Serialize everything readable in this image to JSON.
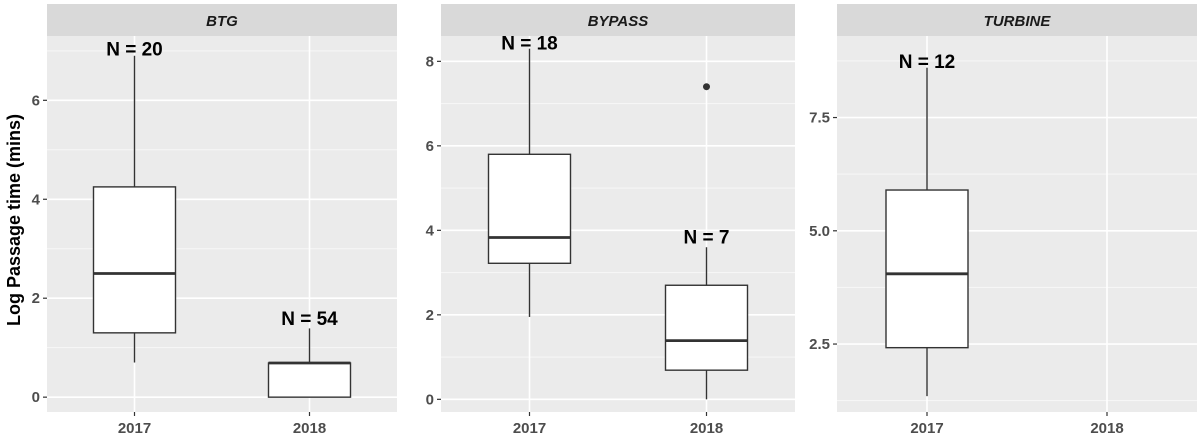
{
  "chart_data": {
    "type": "boxplot",
    "ylabel": "Log Passage time (mins)",
    "xlabel": "",
    "categories": [
      "2017",
      "2018"
    ],
    "facets": [
      {
        "name": "BTG",
        "ylim": [
          -0.3,
          7.3
        ],
        "yticks": [
          0,
          2,
          4,
          6
        ],
        "yticklabels": [
          "0",
          "2",
          "4",
          "6"
        ],
        "boxes": [
          {
            "category": "2017",
            "min": 0.7,
            "q1": 1.3,
            "median": 2.5,
            "q3": 4.25,
            "max": 6.9,
            "outliers": [],
            "n_label": "N = 20",
            "n_value": 7.05
          },
          {
            "category": "2018",
            "min": 0.0,
            "q1": 0.0,
            "median": 0.69,
            "q3": 0.69,
            "max": 1.39,
            "outliers": [],
            "n_label": "N = 54",
            "n_value": 1.6
          }
        ]
      },
      {
        "name": "BYPASS",
        "ylim": [
          -0.3,
          8.6
        ],
        "yticks": [
          0,
          2,
          4,
          6,
          8
        ],
        "yticklabels": [
          "0",
          "2",
          "4",
          "6",
          "8"
        ],
        "boxes": [
          {
            "category": "2017",
            "min": 1.95,
            "q1": 3.22,
            "median": 3.83,
            "q3": 5.8,
            "max": 8.3,
            "outliers": [],
            "n_label": "N = 18",
            "n_value": 8.45
          },
          {
            "category": "2018",
            "min": 0.0,
            "q1": 0.69,
            "median": 1.39,
            "q3": 2.7,
            "max": 3.6,
            "outliers": [
              7.4
            ],
            "n_label": "N = 7",
            "n_value": 3.85
          }
        ]
      },
      {
        "name": "TURBINE",
        "ylim": [
          1.0,
          9.3
        ],
        "yticks": [
          2.5,
          5.0,
          7.5
        ],
        "yticklabels": [
          "2.5",
          "5.0",
          "7.5"
        ],
        "boxes": [
          {
            "category": "2017",
            "min": 1.35,
            "q1": 2.42,
            "median": 4.05,
            "q3": 5.9,
            "max": 8.6,
            "outliers": [],
            "n_label": "N = 12",
            "n_value": 8.75
          }
        ]
      }
    ]
  }
}
